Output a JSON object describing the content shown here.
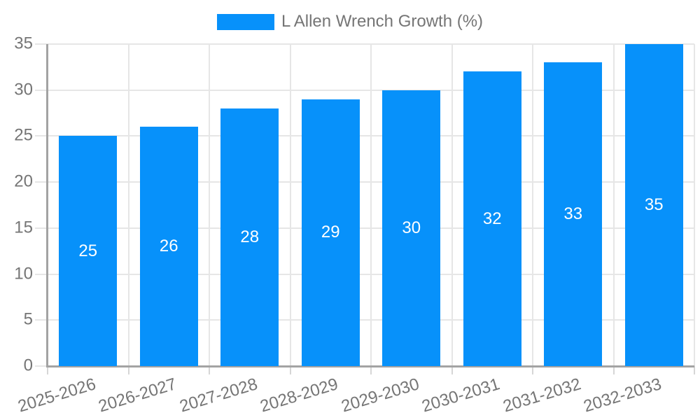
{
  "legend": {
    "label": "L Allen Wrench Growth (%)"
  },
  "colors": {
    "bar": "#0791fa",
    "axis_line": "#a3a3a3",
    "gridline": "#e6e6e6",
    "x_tickmark": "#d6d6d6",
    "tick_text": "#757575",
    "value_label_text": "#ffffff",
    "background": "#ffffff"
  },
  "chart_data": {
    "type": "bar",
    "title": "L Allen Wrench Growth (%)",
    "categories": [
      "2025-2026",
      "2026-2027",
      "2027-2028",
      "2028-2029",
      "2029-2030",
      "2030-2031",
      "2031-2032",
      "2032-2033"
    ],
    "values": [
      25,
      26,
      28,
      29,
      30,
      32,
      33,
      35
    ],
    "series": [
      {
        "name": "L Allen Wrench Growth (%)",
        "values": [
          25,
          26,
          28,
          29,
          30,
          32,
          33,
          35
        ]
      }
    ],
    "xlabel": "",
    "ylabel": "",
    "ylim": [
      0,
      35
    ],
    "yticks": [
      0,
      5,
      10,
      15,
      20,
      25,
      30,
      35
    ],
    "grid": true,
    "legend_position": "top-center",
    "value_labels": "inside-center"
  }
}
